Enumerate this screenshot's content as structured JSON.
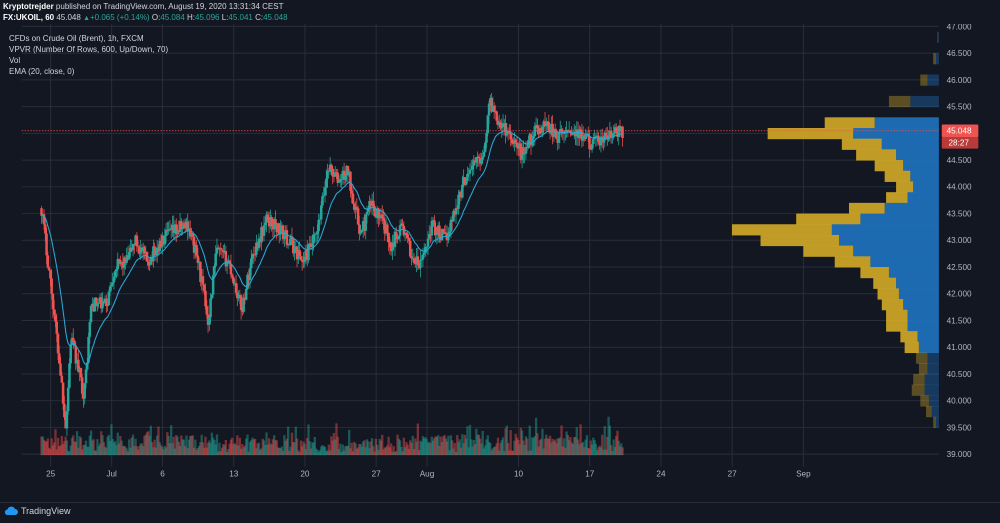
{
  "header": {
    "author": "Kryptotrejder",
    "published_text": "published on TradingView.com, August 19, 2020 13:31:34 CEST",
    "symbol": "FX:UKOIL, 60",
    "last": "45.048",
    "change": "+0.065 (+0.14%)",
    "o_label": "O:",
    "o_value": "45.084",
    "h_label": "H:",
    "h_value": "45.096",
    "l_label": "L:",
    "l_value": "45.041",
    "c_label": "C:",
    "c_value": "45.048"
  },
  "indicators": [
    "CFDs on Crude Oil (Brent), 1h, FXCM",
    "VPVR (Number Of Rows, 600, Up/Down, 70)",
    "Vol",
    "EMA (20, close, 0)"
  ],
  "footer": {
    "brand": "TradingView"
  },
  "colors": {
    "background": "#131722",
    "grid": "#2a2e39",
    "up": "#26a69a",
    "down": "#ef5350",
    "ema": "#2aa9d8",
    "vpvr_up": "#1e6fb8",
    "vpvr_down": "#c9a227",
    "price_label": "#ef5350"
  },
  "chart_data": {
    "type": "candlestick",
    "symbol": "FX:UKOIL",
    "timeframe": "1h",
    "ylim": [
      38.8,
      47.0
    ],
    "y_ticks": [
      "47.000",
      "46.500",
      "46.000",
      "45.500",
      "45.000",
      "44.500",
      "44.000",
      "43.500",
      "43.000",
      "42.500",
      "42.000",
      "41.500",
      "41.000",
      "40.500",
      "40.000",
      "39.500",
      "39.000"
    ],
    "x_ticks": [
      {
        "label": "25",
        "day": 0
      },
      {
        "label": "Jul",
        "day": 6
      },
      {
        "label": "6",
        "day": 11
      },
      {
        "label": "13",
        "day": 18
      },
      {
        "label": "20",
        "day": 25
      },
      {
        "label": "27",
        "day": 32
      },
      {
        "label": "Aug",
        "day": 37
      },
      {
        "label": "10",
        "day": 46
      },
      {
        "label": "17",
        "day": 53
      },
      {
        "label": "24",
        "day": 60
      },
      {
        "label": "27",
        "day": 67
      },
      {
        "label": "Sep",
        "day": 74
      }
    ],
    "last_price": "45.048",
    "countdown": "28:27",
    "price_anchors": [
      [
        -0.9,
        43.6
      ],
      [
        0,
        42.2
      ],
      [
        1,
        40.5
      ],
      [
        1.5,
        39.5
      ],
      [
        2,
        41.2
      ],
      [
        3.3,
        40.1
      ],
      [
        4,
        41.8
      ],
      [
        5.5,
        41.8
      ],
      [
        6.3,
        42.5
      ],
      [
        7.5,
        42.6
      ],
      [
        8.3,
        43.0
      ],
      [
        9.5,
        42.6
      ],
      [
        11.5,
        43.1
      ],
      [
        13.5,
        43.3
      ],
      [
        14.5,
        42.6
      ],
      [
        15.5,
        41.5
      ],
      [
        16.3,
        42.8
      ],
      [
        17.5,
        42.6
      ],
      [
        18.8,
        41.7
      ],
      [
        19.8,
        42.7
      ],
      [
        21.3,
        43.4
      ],
      [
        22.5,
        43.2
      ],
      [
        23.8,
        42.9
      ],
      [
        24.8,
        42.6
      ],
      [
        26.2,
        43.1
      ],
      [
        27.3,
        44.4
      ],
      [
        28.3,
        44.1
      ],
      [
        29.2,
        44.3
      ],
      [
        30.5,
        43.1
      ],
      [
        31.5,
        43.7
      ],
      [
        32.7,
        43.3
      ],
      [
        33.5,
        42.9
      ],
      [
        34.5,
        43.3
      ],
      [
        35.5,
        42.7
      ],
      [
        36.3,
        42.5
      ],
      [
        37.5,
        43.3
      ],
      [
        38.8,
        43.0
      ],
      [
        39.8,
        43.6
      ],
      [
        41,
        44.3
      ],
      [
        42.5,
        44.6
      ],
      [
        43.2,
        45.6
      ],
      [
        44.2,
        45.2
      ],
      [
        45.5,
        44.9
      ],
      [
        46.3,
        44.6
      ],
      [
        47.5,
        45.0
      ],
      [
        48.8,
        45.2
      ],
      [
        49.8,
        44.9
      ],
      [
        51,
        45.1
      ],
      [
        52.3,
        44.9
      ],
      [
        53.5,
        44.8
      ],
      [
        54.5,
        44.9
      ],
      [
        55.5,
        45.0
      ],
      [
        56.3,
        45.05
      ]
    ],
    "candle_hours_per_step": 3,
    "volume_max": 120,
    "vpvr_bins": [
      {
        "price": 46.8,
        "up": 0.5,
        "down": 0.5
      },
      {
        "price": 46.4,
        "up": 2,
        "down": 2
      },
      {
        "price": 46.0,
        "up": 8,
        "down": 5
      },
      {
        "price": 45.6,
        "up": 20,
        "down": 15
      },
      {
        "price": 45.2,
        "up": 45,
        "down": 35
      },
      {
        "price": 45.0,
        "up": 60,
        "down": 60
      },
      {
        "price": 44.8,
        "up": 40,
        "down": 28
      },
      {
        "price": 44.6,
        "up": 30,
        "down": 28
      },
      {
        "price": 44.4,
        "up": 25,
        "down": 20
      },
      {
        "price": 44.2,
        "up": 20,
        "down": 18
      },
      {
        "price": 44.0,
        "up": 18,
        "down": 12
      },
      {
        "price": 43.8,
        "up": 22,
        "down": 15
      },
      {
        "price": 43.6,
        "up": 38,
        "down": 25
      },
      {
        "price": 43.4,
        "up": 55,
        "down": 45
      },
      {
        "price": 43.2,
        "up": 75,
        "down": 70
      },
      {
        "price": 43.0,
        "up": 70,
        "down": 55
      },
      {
        "price": 42.8,
        "up": 60,
        "down": 35
      },
      {
        "price": 42.6,
        "up": 48,
        "down": 25
      },
      {
        "price": 42.4,
        "up": 35,
        "down": 20
      },
      {
        "price": 42.2,
        "up": 30,
        "down": 16
      },
      {
        "price": 42.0,
        "up": 28,
        "down": 15
      },
      {
        "price": 41.8,
        "up": 25,
        "down": 15
      },
      {
        "price": 41.6,
        "up": 22,
        "down": 15
      },
      {
        "price": 41.4,
        "up": 22,
        "down": 15
      },
      {
        "price": 41.2,
        "up": 15,
        "down": 12
      },
      {
        "price": 41.0,
        "up": 14,
        "down": 10
      },
      {
        "price": 40.8,
        "up": 8,
        "down": 8
      },
      {
        "price": 40.6,
        "up": 8,
        "down": 6
      },
      {
        "price": 40.4,
        "up": 10,
        "down": 8
      },
      {
        "price": 40.2,
        "up": 10,
        "down": 9
      },
      {
        "price": 40.0,
        "up": 7,
        "down": 6
      },
      {
        "price": 39.8,
        "up": 5,
        "down": 4
      },
      {
        "price": 39.6,
        "up": 2,
        "down": 2
      }
    ],
    "vpvr_highlight_range": [
      41.0,
      45.3
    ]
  }
}
